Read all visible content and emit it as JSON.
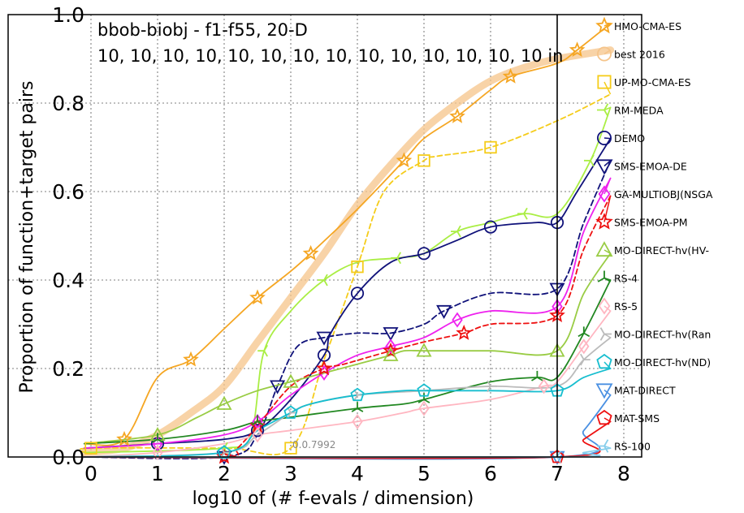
{
  "chart_data": {
    "type": "line",
    "title": "bbob-biobj - f1-f55, 20-D",
    "subtitle": "10, 10, 10, 10, 10, 10, 10, 10, 10, 10, 10, 10, 10, 10 in",
    "xlabel": "log10 of (# f-evals / dimension)",
    "ylabel": "Proportion of function+target pairs",
    "xlim": [
      -0.1,
      8.2
    ],
    "ylim": [
      0,
      1.0
    ],
    "xticks": [
      "0",
      "1",
      "2",
      "3",
      "4",
      "5",
      "6",
      "7",
      "8"
    ],
    "yticks": [
      "0.0",
      "0.2",
      "0.4",
      "0.6",
      "0.8",
      "1.0"
    ],
    "grid": true,
    "budget_line_x": 7,
    "legend_position": "right",
    "annotation": "0.0.7992",
    "series": [
      {
        "name": "best 2016",
        "color": "#f5c48a",
        "marker": "none",
        "points": [
          [
            -0.1,
            0.01
          ],
          [
            0.5,
            0.02
          ],
          [
            1,
            0.05
          ],
          [
            1.5,
            0.1
          ],
          [
            2,
            0.16
          ],
          [
            2.5,
            0.26
          ],
          [
            3,
            0.36
          ],
          [
            3.5,
            0.46
          ],
          [
            4,
            0.57
          ],
          [
            4.5,
            0.66
          ],
          [
            5,
            0.74
          ],
          [
            5.5,
            0.8
          ],
          [
            6,
            0.85
          ],
          [
            6.5,
            0.88
          ],
          [
            7,
            0.9
          ],
          [
            7.8,
            0.92
          ]
        ]
      },
      {
        "name": "HMO-CMA-ES",
        "color": "#f5a623",
        "marker": "star",
        "points": [
          [
            -0.1,
            0.03
          ],
          [
            0.5,
            0.04
          ],
          [
            1,
            0.18
          ],
          [
            1.5,
            0.22
          ],
          [
            2,
            0.29
          ],
          [
            2.5,
            0.36
          ],
          [
            3,
            0.42
          ],
          [
            3.3,
            0.46
          ],
          [
            4,
            0.56
          ],
          [
            4.7,
            0.67
          ],
          [
            5,
            0.72
          ],
          [
            5.5,
            0.77
          ],
          [
            6,
            0.83
          ],
          [
            6.3,
            0.86
          ],
          [
            7,
            0.89
          ],
          [
            7.3,
            0.92
          ],
          [
            7.8,
            0.98
          ]
        ]
      },
      {
        "name": "UP-MO-CMA-ES",
        "color": "#f5cc1a",
        "marker": "square",
        "points": [
          [
            -0.1,
            0.01
          ],
          [
            0,
            0.02
          ],
          [
            2,
            0.02
          ],
          [
            3,
            0.02
          ],
          [
            3.5,
            0.22
          ],
          [
            4,
            0.43
          ],
          [
            4.4,
            0.6
          ],
          [
            5,
            0.67
          ],
          [
            5.2,
            0.68
          ],
          [
            6,
            0.7
          ],
          [
            7,
            0.76
          ],
          [
            7.8,
            0.82
          ]
        ]
      },
      {
        "name": "RM-MEDA",
        "color": "#aaee44",
        "marker": "tri_left",
        "points": [
          [
            -0.1,
            0.01
          ],
          [
            2,
            0.02
          ],
          [
            2.4,
            0.05
          ],
          [
            2.6,
            0.24
          ],
          [
            3,
            0.33
          ],
          [
            3.5,
            0.4
          ],
          [
            4,
            0.44
          ],
          [
            4.6,
            0.45
          ],
          [
            5,
            0.46
          ],
          [
            5.5,
            0.51
          ],
          [
            6,
            0.53
          ],
          [
            6.5,
            0.55
          ],
          [
            7,
            0.55
          ],
          [
            7.5,
            0.67
          ],
          [
            7.8,
            0.79
          ]
        ]
      },
      {
        "name": "DEMO",
        "color": "#10127a",
        "marker": "circle",
        "points": [
          [
            -0.1,
            0.02
          ],
          [
            1,
            0.03
          ],
          [
            2,
            0.04
          ],
          [
            2.5,
            0.06
          ],
          [
            3,
            0.13
          ],
          [
            3.5,
            0.23
          ],
          [
            3.6,
            0.28
          ],
          [
            4,
            0.37
          ],
          [
            4.5,
            0.44
          ],
          [
            5,
            0.46
          ],
          [
            5.5,
            0.49
          ],
          [
            6,
            0.52
          ],
          [
            6.7,
            0.53
          ],
          [
            7,
            0.53
          ],
          [
            7.3,
            0.6
          ],
          [
            7.8,
            0.72
          ]
        ]
      },
      {
        "name": "SMS-EMOA-DE",
        "color": "#10127a",
        "marker": "tri_down",
        "points": [
          [
            -0.1,
            0.0
          ],
          [
            2,
            0.0
          ],
          [
            2.5,
            0.05
          ],
          [
            2.8,
            0.16
          ],
          [
            3.1,
            0.25
          ],
          [
            3.5,
            0.27
          ],
          [
            4,
            0.28
          ],
          [
            4.5,
            0.28
          ],
          [
            5,
            0.3
          ],
          [
            5.3,
            0.33
          ],
          [
            6,
            0.37
          ],
          [
            7,
            0.38
          ],
          [
            7.4,
            0.53
          ],
          [
            7.8,
            0.67
          ]
        ]
      },
      {
        "name": "GA-MULTIOBJ(NSGA",
        "color": "#ee22ee",
        "marker": "diamond",
        "points": [
          [
            -0.1,
            0.02
          ],
          [
            1,
            0.03
          ],
          [
            2,
            0.05
          ],
          [
            2.5,
            0.08
          ],
          [
            3,
            0.14
          ],
          [
            3.5,
            0.19
          ],
          [
            4,
            0.23
          ],
          [
            4.5,
            0.25
          ],
          [
            5,
            0.27
          ],
          [
            5.5,
            0.31
          ],
          [
            6,
            0.33
          ],
          [
            7,
            0.34
          ],
          [
            7.4,
            0.51
          ],
          [
            7.8,
            0.63
          ]
        ]
      },
      {
        "name": "SMS-EMOA-PM",
        "color": "#ee1111",
        "marker": "star",
        "points": [
          [
            -0.1,
            0.0
          ],
          [
            2,
            0.0
          ],
          [
            2.2,
            0.02
          ],
          [
            2.5,
            0.07
          ],
          [
            3,
            0.16
          ],
          [
            3.5,
            0.2
          ],
          [
            3.8,
            0.21
          ],
          [
            4.5,
            0.24
          ],
          [
            5,
            0.26
          ],
          [
            5.6,
            0.28
          ],
          [
            6,
            0.3
          ],
          [
            7,
            0.32
          ],
          [
            7.4,
            0.47
          ],
          [
            7.8,
            0.59
          ]
        ]
      },
      {
        "name": "MO-DIRECT-hv(HV-",
        "color": "#99cc44",
        "marker": "triangle",
        "points": [
          [
            -0.1,
            0.03
          ],
          [
            1,
            0.05
          ],
          [
            1.6,
            0.09
          ],
          [
            2,
            0.12
          ],
          [
            2.5,
            0.15
          ],
          [
            3,
            0.17
          ],
          [
            4,
            0.21
          ],
          [
            4.5,
            0.23
          ],
          [
            4.7,
            0.24
          ],
          [
            5,
            0.24
          ],
          [
            6,
            0.24
          ],
          [
            7,
            0.24
          ],
          [
            7.4,
            0.37
          ],
          [
            7.8,
            0.46
          ]
        ]
      },
      {
        "name": "RS-4",
        "color": "#228822",
        "marker": "tri_up",
        "points": [
          [
            -0.1,
            0.03
          ],
          [
            1,
            0.04
          ],
          [
            2,
            0.06
          ],
          [
            2.5,
            0.08
          ],
          [
            3,
            0.09
          ],
          [
            4,
            0.11
          ],
          [
            4.7,
            0.12
          ],
          [
            5,
            0.13
          ],
          [
            6,
            0.17
          ],
          [
            6.7,
            0.18
          ],
          [
            7,
            0.18
          ],
          [
            7.4,
            0.28
          ],
          [
            7.8,
            0.4
          ]
        ]
      },
      {
        "name": "RS-5",
        "color": "#ffb6c1",
        "marker": "diamond",
        "points": [
          [
            -0.1,
            0.0
          ],
          [
            1,
            0.01
          ],
          [
            2,
            0.03
          ],
          [
            2.5,
            0.05
          ],
          [
            3,
            0.06
          ],
          [
            4,
            0.08
          ],
          [
            4.7,
            0.1
          ],
          [
            5,
            0.11
          ],
          [
            6,
            0.13
          ],
          [
            6.8,
            0.16
          ],
          [
            7,
            0.17
          ],
          [
            7.4,
            0.25
          ],
          [
            7.8,
            0.33
          ]
        ]
      },
      {
        "name": "MO-DIRECT-hv(Ran",
        "color": "#bbbbbb",
        "marker": "tri_right",
        "points": [
          [
            -0.1,
            0.0
          ],
          [
            2,
            0.01
          ],
          [
            2.5,
            0.05
          ],
          [
            3,
            0.1
          ],
          [
            3.3,
            0.12
          ],
          [
            4,
            0.14
          ],
          [
            5,
            0.15
          ],
          [
            6,
            0.16
          ],
          [
            7,
            0.16
          ],
          [
            7.4,
            0.22
          ],
          [
            7.8,
            0.27
          ]
        ]
      },
      {
        "name": "MO-DIRECT-hv(ND)",
        "color": "#17becf",
        "marker": "pentagon",
        "points": [
          [
            -0.1,
            0.0
          ],
          [
            2,
            0.01
          ],
          [
            2.5,
            0.06
          ],
          [
            3,
            0.1
          ],
          [
            3.3,
            0.12
          ],
          [
            4,
            0.14
          ],
          [
            4.7,
            0.15
          ],
          [
            5,
            0.15
          ],
          [
            6,
            0.15
          ],
          [
            7,
            0.15
          ],
          [
            7.4,
            0.18
          ],
          [
            7.8,
            0.2
          ]
        ]
      },
      {
        "name": "MAT-DIRECT",
        "color": "#4a90e2",
        "marker": "tri_down",
        "points": [
          [
            -0.1,
            0.0
          ],
          [
            7,
            0.0
          ],
          [
            7.4,
            0.06
          ],
          [
            7.8,
            0.14
          ]
        ]
      },
      {
        "name": "MAT-SMS",
        "color": "#ee1111",
        "marker": "pentagon",
        "points": [
          [
            -0.1,
            0.0
          ],
          [
            7,
            0.0
          ],
          [
            7.4,
            0.04
          ],
          [
            7.8,
            0.08
          ]
        ]
      },
      {
        "name": "RS-100",
        "color": "#87ceeb",
        "marker": "tri_left",
        "points": [
          [
            -0.1,
            0.0
          ],
          [
            7,
            0.0
          ],
          [
            7.4,
            0.01
          ],
          [
            7.8,
            0.02
          ]
        ]
      }
    ],
    "legend_order": [
      "HMO-CMA-ES",
      "best 2016",
      "UP-MO-CMA-ES",
      "RM-MEDA",
      "DEMO",
      "SMS-EMOA-DE",
      "GA-MULTIOBJ(NSGA",
      "SMS-EMOA-PM",
      "MO-DIRECT-hv(HV-",
      "RS-4",
      "RS-5",
      "MO-DIRECT-hv(Ran",
      "MO-DIRECT-hv(ND)",
      "MAT-DIRECT",
      "MAT-SMS",
      "RS-100"
    ]
  }
}
